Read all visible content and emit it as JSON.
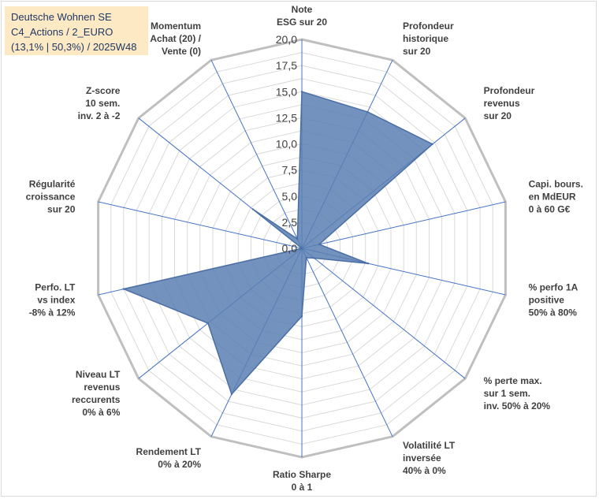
{
  "chart_data": {
    "type": "radar",
    "title_lines": [
      "Deutsche Wohnen SE",
      "C4_Actions / 2_EURO",
      "(13,1% | 50,3%) / 2025W48"
    ],
    "axes": [
      {
        "label": [
          "Note",
          "ESG sur 20"
        ],
        "value": 15.0
      },
      {
        "label": [
          "Profondeur",
          "historique",
          "sur 20"
        ],
        "value": 14.5
      },
      {
        "label": [
          "Profondeur",
          "revenus",
          "sur 20"
        ],
        "value": 16.0
      },
      {
        "label": [
          "Capi. bours.",
          "en MdEUR",
          "0 à 60 G€"
        ],
        "value": 1.7
      },
      {
        "label": [
          "% perfo 1A",
          "positive",
          "50% à 80%"
        ],
        "value": 6.5
      },
      {
        "label": [
          "% perte max.",
          "sur 1 sem.",
          "inv. 50% à 20%"
        ],
        "value": 1.5
      },
      {
        "label": [
          "Volatilité LT",
          "inversée",
          "40% à 0%"
        ],
        "value": 1.0
      },
      {
        "label": [
          "Ratio Sharpe",
          "0 à 1"
        ],
        "value": 6.5
      },
      {
        "label": [
          "Rendement LT",
          "0% à 20%"
        ],
        "value": 15.5
      },
      {
        "label": [
          "Niveau LT",
          "revenus",
          "reccurents",
          "0% à 6%"
        ],
        "value": 11.5
      },
      {
        "label": [
          "Perfo. LT",
          "vs index",
          "-8% à 12%"
        ],
        "value": 17.5
      },
      {
        "label": [
          "Régularité",
          "croissance",
          "sur 20"
        ],
        "value": 0.0
      },
      {
        "label": [
          "Z-score",
          "10 sem.",
          "inv. 2 à -2"
        ],
        "value": 6.0
      },
      {
        "label": [
          "Momentum",
          "Achat (20) /",
          "Vente (0)"
        ],
        "value": 1.0
      }
    ],
    "r_ticks": [
      "0,0",
      "2,5",
      "5,0",
      "7,5",
      "10,0",
      "12,5",
      "15,0",
      "17,5",
      "20,0"
    ],
    "rlim": [
      0,
      20
    ],
    "grid": true,
    "series_color": "#5b7fb3",
    "series_fill_opacity": 0.85
  }
}
